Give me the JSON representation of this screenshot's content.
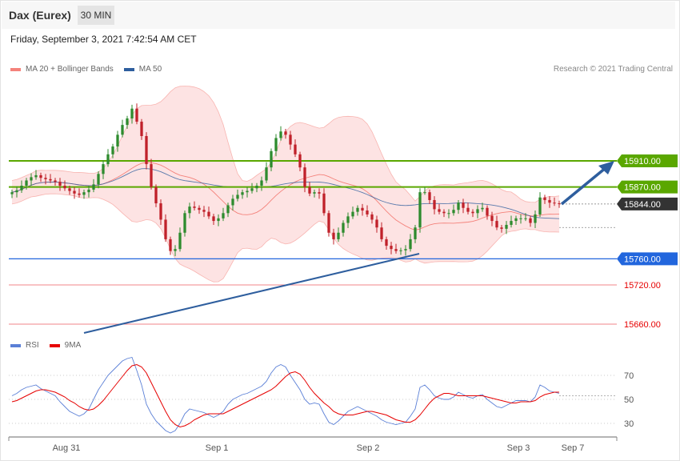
{
  "header": {
    "title": "Dax (Eurex)",
    "timeframe": "30 MIN",
    "datetime": "Friday, September 3, 2021 7:42:54 AM CET"
  },
  "legend": {
    "items": [
      {
        "label": "MA 20 + Bollinger Bands",
        "color": "#f4827b"
      },
      {
        "label": "MA 50",
        "color": "#2e5e9e"
      }
    ],
    "copyright": "Research © 2021 Trading Central"
  },
  "rsi_legend": {
    "items": [
      {
        "label": "RSI",
        "color": "#5a7fd6"
      },
      {
        "label": "9MA",
        "color": "#e60000"
      }
    ]
  },
  "colors": {
    "up_candle": "#2e8b2e",
    "down_candle": "#c0212a",
    "resistance": "#5aa700",
    "support": "#2266dd",
    "red_level": "#f0868a",
    "current": "#333333",
    "trendline": "#2e5e9e",
    "band_fill": "#fde3e3"
  },
  "chart_data": [
    {
      "type": "candlestick",
      "title": "Dax (Eurex)",
      "timeframe": "30 MIN",
      "x_labels": [
        "Aug 31",
        "Sep 1",
        "Sep 2",
        "Sep 3",
        "Sep 7"
      ],
      "ylim": [
        15645,
        15995
      ],
      "series": [
        {
          "name": "MA 20 + Bollinger Bands",
          "color": "#f4827b"
        },
        {
          "name": "MA 50",
          "color": "#2e5e9e"
        }
      ],
      "levels": [
        {
          "value": 15910.0,
          "label": "15910.00",
          "kind": "resistance",
          "tag": true
        },
        {
          "value": 15870.0,
          "label": "15870.00",
          "kind": "resistance",
          "tag": true
        },
        {
          "value": 15844.0,
          "label": "15844.00",
          "kind": "current",
          "tag": true
        },
        {
          "value": 15760.0,
          "label": "15760.00",
          "kind": "support",
          "tag": true
        },
        {
          "value": 15720.0,
          "label": "15720.00",
          "kind": "red",
          "tag": false
        },
        {
          "value": 15660.0,
          "label": "15660.00",
          "kind": "red",
          "tag": false
        }
      ],
      "closes": [
        15862,
        15865,
        15872,
        15880,
        15885,
        15888,
        15884,
        15882,
        15880,
        15878,
        15872,
        15868,
        15864,
        15860,
        15858,
        15862,
        15866,
        15874,
        15890,
        15905,
        15920,
        15932,
        15950,
        15965,
        15975,
        15990,
        15970,
        15948,
        15905,
        15870,
        15845,
        15820,
        15790,
        15772,
        15775,
        15800,
        15830,
        15840,
        15838,
        15835,
        15832,
        15825,
        15818,
        15822,
        15830,
        15842,
        15852,
        15858,
        15862,
        15864,
        15868,
        15872,
        15880,
        15900,
        15925,
        15945,
        15955,
        15950,
        15935,
        15920,
        15900,
        15870,
        15860,
        15862,
        15860,
        15830,
        15800,
        15790,
        15800,
        15815,
        15825,
        15832,
        15838,
        15834,
        15828,
        15820,
        15808,
        15790,
        15780,
        15775,
        15772,
        15773,
        15775,
        15790,
        15808,
        15862,
        15862,
        15850,
        15836,
        15832,
        15830,
        15830,
        15835,
        15846,
        15838,
        15832,
        15830,
        15836,
        15838,
        15826,
        15818,
        15808,
        15806,
        15812,
        15818,
        15822,
        15822,
        15822,
        15815,
        15828,
        15854,
        15850,
        15846,
        15845,
        15844
      ]
    },
    {
      "type": "line",
      "title": "RSI",
      "series": [
        {
          "name": "RSI",
          "color": "#5a7fd6"
        },
        {
          "name": "9MA",
          "color": "#e60000"
        }
      ],
      "ylim": [
        20,
        80
      ],
      "yticks": [
        30,
        50,
        70
      ],
      "rsi": [
        53,
        55,
        58,
        60,
        61,
        62,
        59,
        57,
        55,
        53,
        48,
        44,
        40,
        38,
        36,
        38,
        42,
        50,
        58,
        64,
        70,
        74,
        78,
        82,
        84,
        85,
        74,
        62,
        46,
        38,
        32,
        28,
        24,
        22,
        24,
        30,
        38,
        42,
        41,
        40,
        39,
        37,
        35,
        37,
        40,
        46,
        50,
        52,
        54,
        55,
        57,
        59,
        61,
        65,
        72,
        77,
        79,
        77,
        70,
        64,
        58,
        50,
        46,
        47,
        46,
        38,
        31,
        29,
        32,
        36,
        40,
        42,
        44,
        42,
        40,
        38,
        36,
        33,
        31,
        30,
        29,
        30,
        31,
        36,
        42,
        60,
        62,
        58,
        53,
        51,
        50,
        50,
        52,
        56,
        54,
        52,
        51,
        53,
        54,
        50,
        47,
        44,
        43,
        45,
        47,
        49,
        49,
        49,
        48,
        52,
        62,
        60,
        57,
        56,
        55
      ],
      "ma9": [
        48,
        49,
        51,
        53,
        55,
        57,
        58,
        58,
        57,
        56,
        54,
        52,
        49,
        47,
        44,
        42,
        41,
        42,
        45,
        49,
        54,
        59,
        64,
        69,
        74,
        78,
        79,
        77,
        72,
        64,
        56,
        48,
        40,
        33,
        29,
        27,
        28,
        30,
        33,
        35,
        37,
        38,
        38,
        38,
        38,
        40,
        42,
        44,
        46,
        48,
        50,
        52,
        54,
        56,
        58,
        61,
        65,
        69,
        72,
        73,
        71,
        66,
        60,
        55,
        51,
        47,
        44,
        40,
        38,
        37,
        37,
        37,
        38,
        39,
        40,
        40,
        39,
        38,
        37,
        35,
        33,
        32,
        31,
        31,
        33,
        37,
        42,
        47,
        51,
        53,
        55,
        55,
        54,
        53,
        53,
        53,
        53,
        53,
        53,
        52,
        51,
        50,
        49,
        48,
        47,
        47,
        48,
        48,
        48,
        49,
        52,
        54,
        55,
        56,
        56
      ]
    }
  ]
}
